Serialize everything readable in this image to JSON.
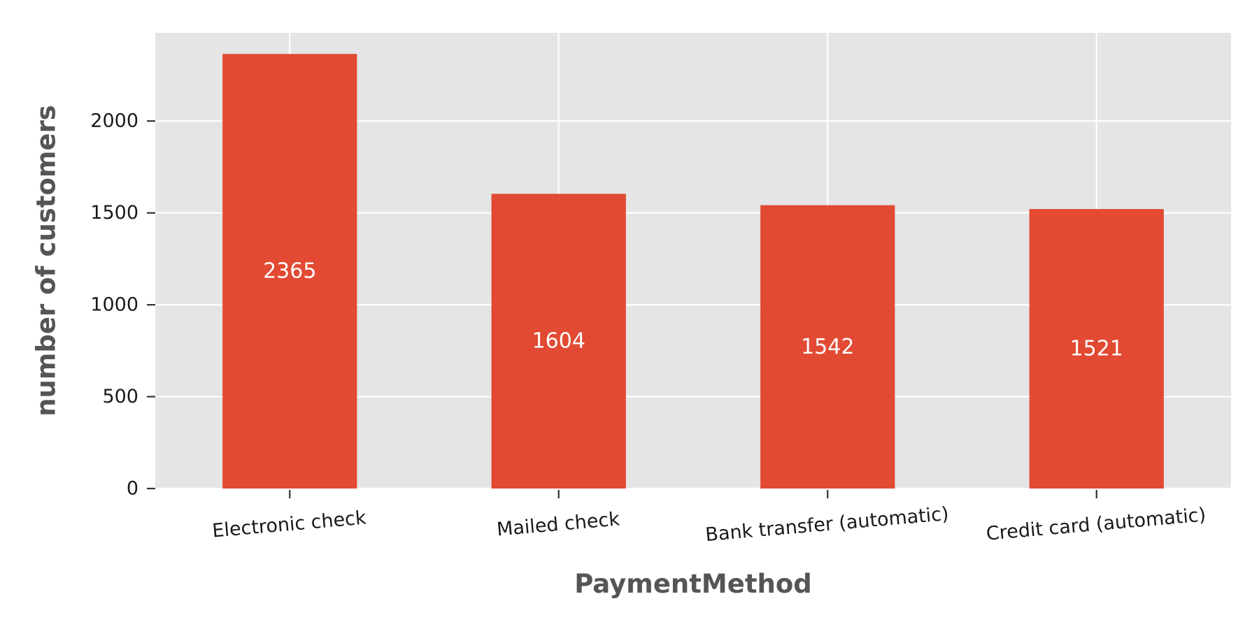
{
  "chart_data": {
    "type": "bar",
    "categories": [
      "Electronic check",
      "Mailed check",
      "Bank transfer (automatic)",
      "Credit card (automatic)"
    ],
    "values": [
      2365,
      1604,
      1542,
      1521
    ],
    "data_labels": [
      "2365",
      "1604",
      "1542",
      "1521"
    ],
    "xlabel": "PaymentMethod",
    "ylabel": "number of customers",
    "ylim": [
      0,
      2480
    ],
    "yticks": [
      0,
      500,
      1000,
      1500,
      2000
    ],
    "ytick_labels": [
      "0",
      "500",
      "1000",
      "1500",
      "2000"
    ],
    "grid": true,
    "legend": "none",
    "xtick_rotation_deg": 5,
    "colors": {
      "bar": "#E24A33",
      "plot_background": "#E5E5E5",
      "grid": "#FFFFFF",
      "bar_label": "#FFFFFF",
      "axis_title": "#555555",
      "tick_label": "#1A1A1A"
    }
  }
}
